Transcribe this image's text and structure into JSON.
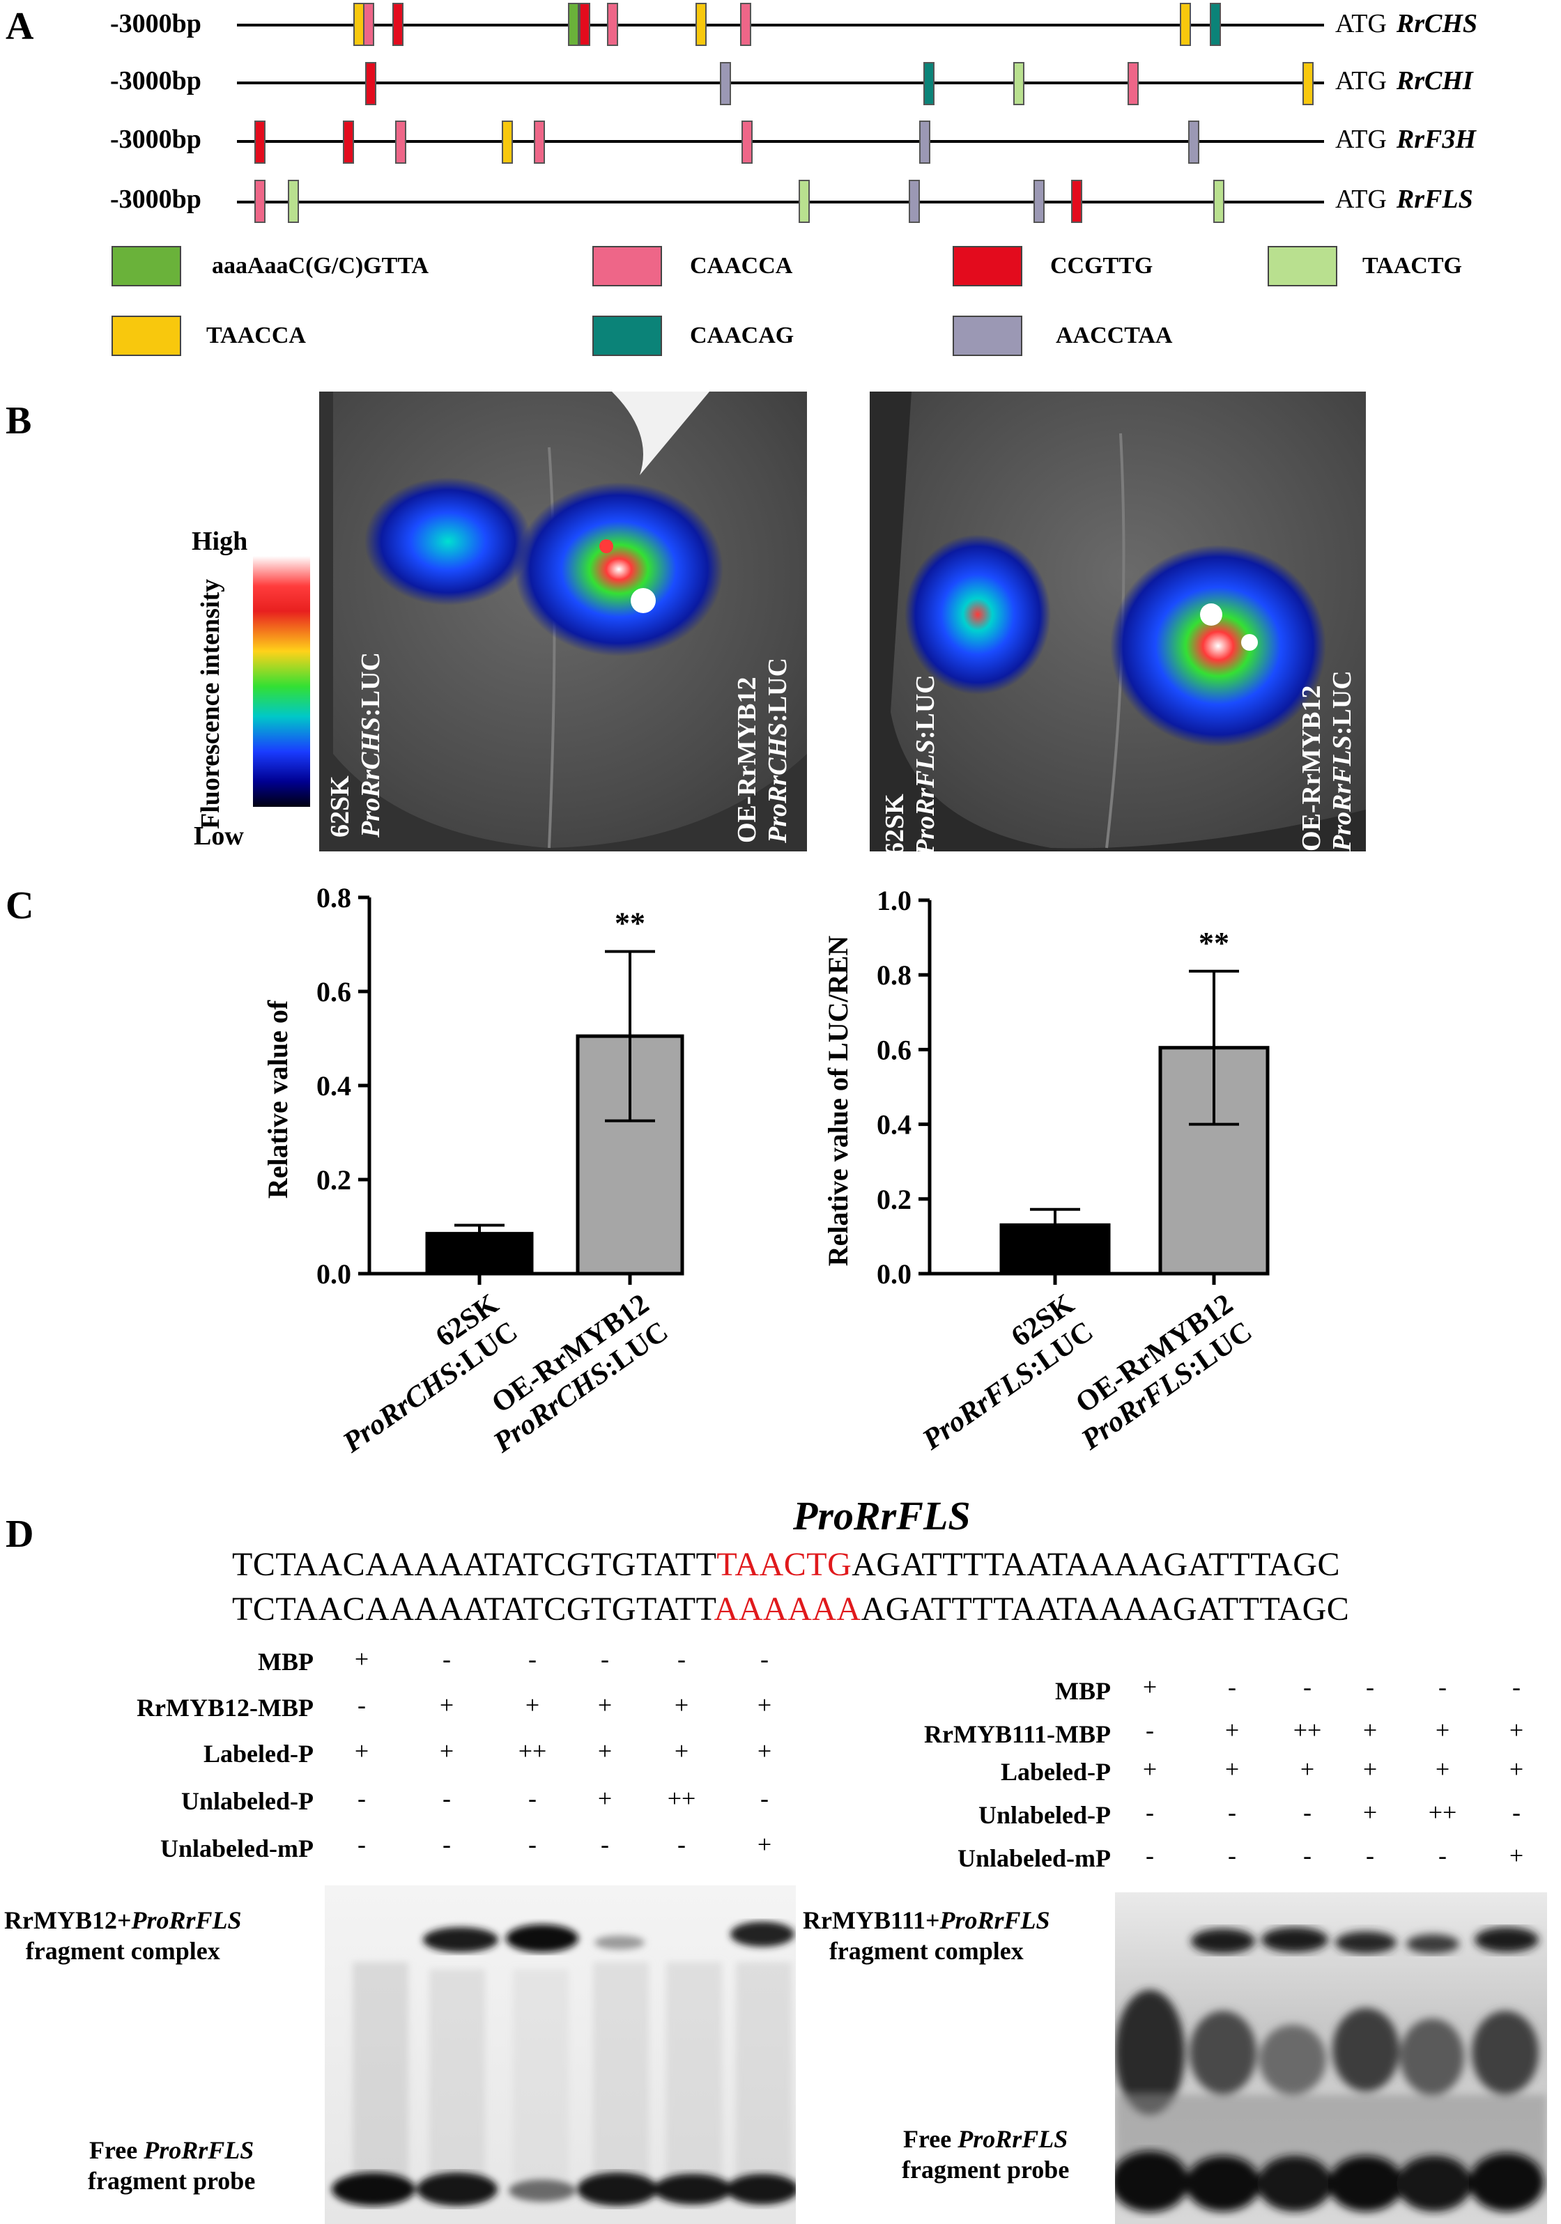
{
  "panels": {
    "a": "A",
    "b": "B",
    "c": "C",
    "d": "D"
  },
  "promoters": [
    {
      "start_label": "-3000bp",
      "atg": "ATG",
      "gene": "RrCHS"
    },
    {
      "start_label": "-3000bp",
      "atg": "ATG",
      "gene": "RrCHI"
    },
    {
      "start_label": "-3000bp",
      "atg": "ATG",
      "gene": "RrF3H"
    },
    {
      "start_label": "-3000bp",
      "atg": "ATG",
      "gene": "RrFLS"
    }
  ],
  "elements": [
    {
      "motif": "aaaAaaC(G/C)GTTA",
      "color": "#6ab23a"
    },
    {
      "motif": "CAACCA",
      "color": "#ee6688"
    },
    {
      "motif": "CCGTTG",
      "color": "#e30b1d"
    },
    {
      "motif": "TAACTG",
      "color": "#b9e08f"
    },
    {
      "motif": "TAACCA",
      "color": "#f8c80d"
    },
    {
      "motif": "CAACAG",
      "color": "#0b8378"
    },
    {
      "motif": "AACCTAA",
      "color": "#9b98b4"
    }
  ],
  "colorbar": {
    "title": "Fluorescence intensity",
    "high": "High",
    "low": "Low"
  },
  "leaf_left": {
    "label1_line1": "62SK",
    "label1_line2_italic": "ProRrCHS",
    "label1_line2_rest": ":LUC",
    "label2_line1": "OE-RrMYB12",
    "label2_line2_italic": "ProRrCHS",
    "label2_line2_rest": ":LUC"
  },
  "leaf_right": {
    "label1_line1": "62SK",
    "label1_line2_italic": "ProRrFLS",
    "label1_line2_rest": ":LUC",
    "label2_line1": "OE-RrMYB12",
    "label2_line2_italic": "ProRrFLS",
    "label2_line2_rest": ":LUC"
  },
  "chart_data": [
    {
      "type": "bar",
      "ylabel": "Relative value of",
      "ylim": [
        0,
        0.8
      ],
      "yticks": [
        "0.0",
        "0.2",
        "0.4",
        "0.6",
        "0.8"
      ],
      "categories": [
        {
          "line1": "62SK",
          "line2_italic": "ProRrCHS",
          "line2_rest": ":LUC"
        },
        {
          "line1": "OE-RrMYB12",
          "line2_italic": "ProRrCHS",
          "line2_rest": ":LUC"
        }
      ],
      "values": [
        0.085,
        0.505
      ],
      "errors": [
        0.018,
        0.18
      ],
      "colors": [
        "#000000",
        "#a6a6a6"
      ],
      "significance": [
        "",
        "**"
      ]
    },
    {
      "type": "bar",
      "ylabel": "Relative value of LUC/REN",
      "ylim": [
        0,
        1.0
      ],
      "yticks": [
        "0.0",
        "0.2",
        "0.4",
        "0.6",
        "0.8",
        "1.0"
      ],
      "categories": [
        {
          "line1": "62SK",
          "line2_italic": "ProRrFLS",
          "line2_rest": ":LUC"
        },
        {
          "line1": "OE-RrMYB12",
          "line2_italic": "ProRrFLS",
          "line2_rest": ":LUC"
        }
      ],
      "values": [
        0.13,
        0.605
      ],
      "errors": [
        0.042,
        0.205
      ],
      "colors": [
        "#000000",
        "#a6a6a6"
      ],
      "significance": [
        "",
        "**"
      ]
    }
  ],
  "sequence": {
    "title": "ProRrFLS",
    "wt_prefix": "TCTAACAAAAATATCGTGTATT",
    "wt_motif": "TAACTG",
    "wt_suffix": "AGATTTTAATAAAAGATTTAGC",
    "mut_prefix": "TCTAACAAAAATATCGTGTATT",
    "mut_motif": "AAAAAA",
    "mut_suffix": "AGATTTTAATAAAAGATTTAGC"
  },
  "emsa_left": {
    "rows": [
      {
        "label": "MBP",
        "symbols": [
          "+",
          "-",
          "-",
          "-",
          "-",
          "-"
        ]
      },
      {
        "label": "RrMYB12-MBP",
        "symbols": [
          "-",
          "+",
          "+",
          "+",
          "+",
          "+"
        ]
      },
      {
        "label": "Labeled-P",
        "symbols": [
          "+",
          "+",
          "++",
          "+",
          "+",
          "+"
        ]
      },
      {
        "label": "Unlabeled-P",
        "symbols": [
          "-",
          "-",
          "-",
          "+",
          "++",
          "-"
        ]
      },
      {
        "label": "Unlabeled-mP",
        "symbols": [
          "-",
          "-",
          "-",
          "-",
          "-",
          "+"
        ]
      }
    ],
    "complex_line1_rest": "RrMYB12+",
    "complex_line1_italic": "ProRrFLS",
    "complex_line2": "fragment complex",
    "free_line1_rest": "Free ",
    "free_line1_italic": "ProRrFLS",
    "free_line2": "fragment probe"
  },
  "emsa_right": {
    "rows": [
      {
        "label": "MBP",
        "symbols": [
          "+",
          "-",
          "-",
          "-",
          "-",
          "-"
        ]
      },
      {
        "label": "RrMYB111-MBP",
        "symbols": [
          "-",
          "+",
          "++",
          "+",
          "+",
          "+"
        ]
      },
      {
        "label": "Labeled-P",
        "symbols": [
          "+",
          "+",
          "+",
          "+",
          "+",
          "+"
        ]
      },
      {
        "label": "Unlabeled-P",
        "symbols": [
          "-",
          "-",
          "-",
          "+",
          "++",
          "-"
        ]
      },
      {
        "label": "Unlabeled-mP",
        "symbols": [
          "-",
          "-",
          "-",
          "-",
          "-",
          "+"
        ]
      }
    ],
    "complex_line1_rest": "RrMYB111+",
    "complex_line1_italic": "ProRrFLS",
    "complex_line2": "fragment complex",
    "free_line1_rest": "Free ",
    "free_line1_italic": "ProRrFLS",
    "free_line2": "fragment probe"
  }
}
